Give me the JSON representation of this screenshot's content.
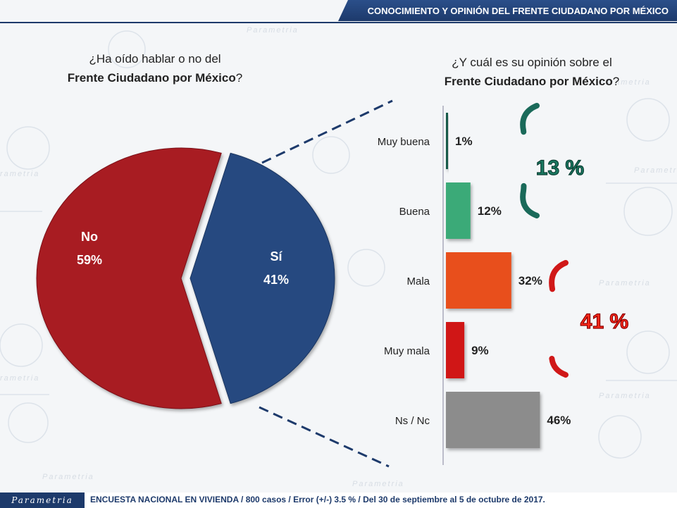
{
  "header": {
    "title": "CONOCIMIENTO Y OPINIÓN DEL FRENTE CIUDADANO POR MÉXICO"
  },
  "left_question": {
    "line1": "¿Ha oído hablar o no del",
    "bold": "Frente Ciudadano por México",
    "end": "?"
  },
  "right_question": {
    "line1": "¿Y cuál es su opinión sobre el",
    "bold": "Frente Ciudadano por México",
    "end": "?"
  },
  "watermark": "Parametria",
  "footer": {
    "logo": "Parametria",
    "text": "ENCUESTA NACIONAL EN VIVIENDA / 800 casos / Error (+/-) 3.5 % / Del 30 de septiembre al 5 de octubre de 2017."
  },
  "colors": {
    "navy": "#1d3a6b",
    "no": "#a81c24",
    "si": "#264a80",
    "muy_buena": "#145a4a",
    "buena": "#3aaa78",
    "mala": "#e8501c",
    "muy_mala": "#d01818",
    "ns": "#8c8c8c"
  },
  "chart_data": [
    {
      "type": "pie",
      "slices": [
        {
          "label": "No",
          "value": 59,
          "display": "59%",
          "color": "#a81c24"
        },
        {
          "label": "Sí",
          "value": 41,
          "display": "41%",
          "color": "#264a80"
        }
      ]
    },
    {
      "type": "bar",
      "orientation": "horizontal",
      "categories": [
        "Muy buena",
        "Buena",
        "Mala",
        "Muy mala",
        "Ns / Nc"
      ],
      "values": [
        1,
        12,
        32,
        9,
        46
      ],
      "labels": [
        "1%",
        "12%",
        "32%",
        "9%",
        "46%"
      ],
      "colors": [
        "#145a4a",
        "#3aaa78",
        "#e8501c",
        "#d01818",
        "#8c8c8c"
      ],
      "annotations": [
        {
          "text": "13 %",
          "groups": [
            "Muy buena",
            "Buena"
          ],
          "color": "#1a7a62"
        },
        {
          "text": "41 %",
          "groups": [
            "Mala",
            "Muy mala"
          ],
          "color": "#d0261c"
        }
      ]
    }
  ]
}
